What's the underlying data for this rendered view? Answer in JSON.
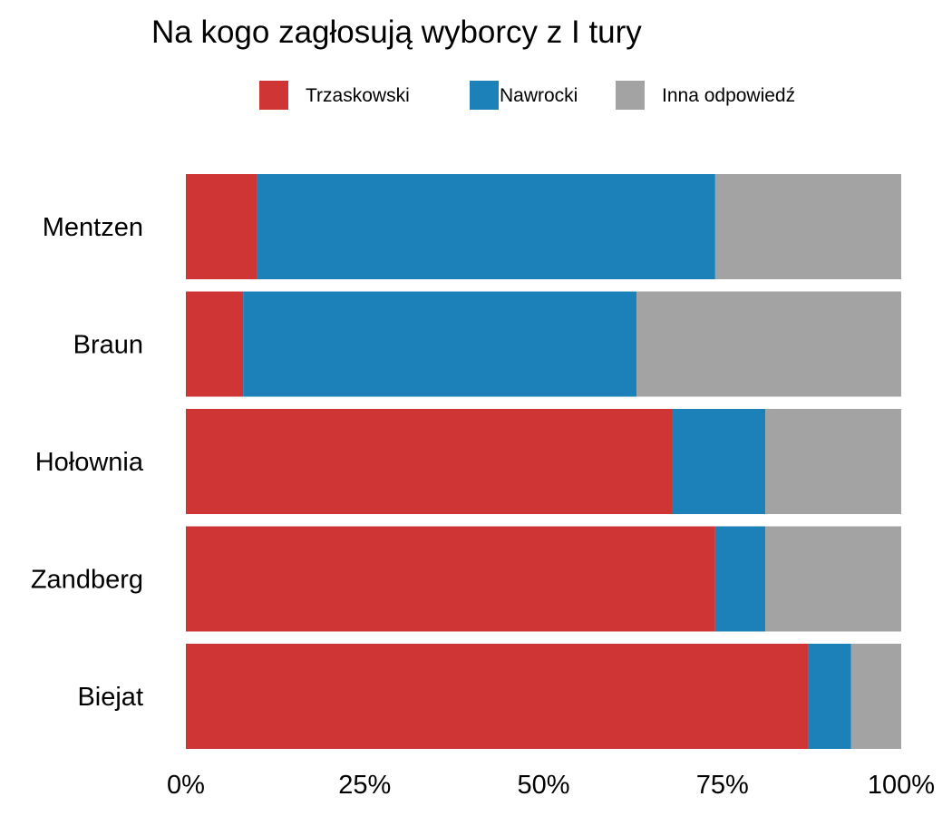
{
  "chart_data": {
    "type": "bar",
    "orientation": "horizontal",
    "stacked": true,
    "title": "Na kogo zagłosują wyborcy z I tury",
    "xlabel": "",
    "ylabel": "",
    "xlim": [
      0,
      100
    ],
    "x_ticks": [
      "0%",
      "25%",
      "50%",
      "75%",
      "100%"
    ],
    "grid": false,
    "legend_position": "top",
    "categories": [
      "Mentzen",
      "Braun",
      "Hołownia",
      "Zandberg",
      "Biejat"
    ],
    "series": [
      {
        "name": "Trzaskowski",
        "color": "#cf3535",
        "values": [
          10,
          8,
          68,
          74,
          87
        ]
      },
      {
        "name": "Nawrocki",
        "color": "#1c80b9",
        "values": [
          64,
          55,
          13,
          7,
          6
        ]
      },
      {
        "name": "Inna odpowiedź",
        "color": "#a3a3a3",
        "values": [
          26,
          37,
          19,
          19,
          7
        ]
      }
    ]
  }
}
